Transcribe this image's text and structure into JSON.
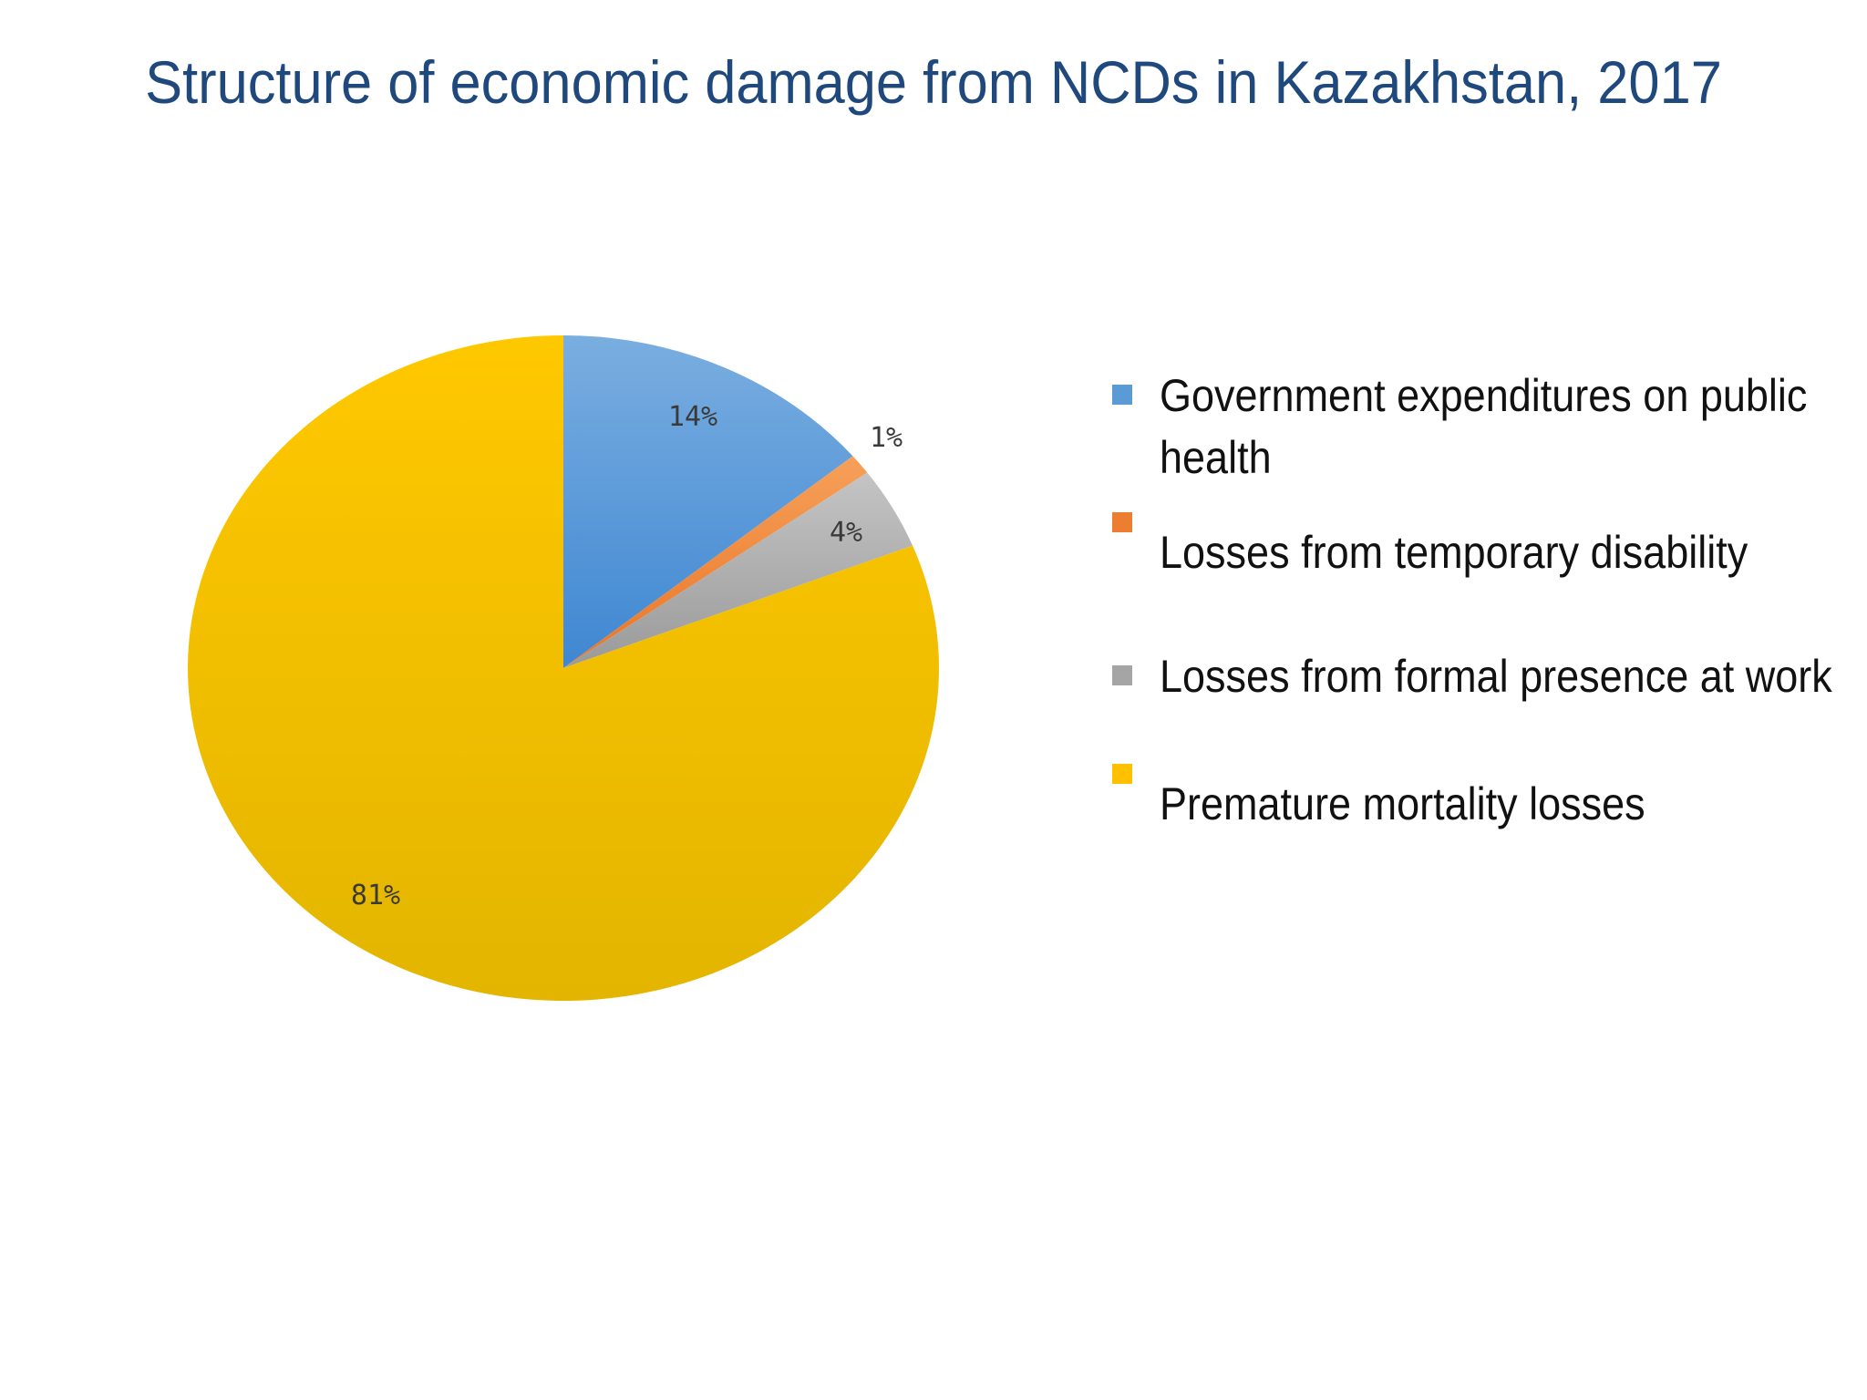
{
  "chart_data": {
    "type": "pie",
    "title": "Structure of economic damage from NCDs in Kazakhstan, 2017",
    "legend_position": "right",
    "slices": [
      {
        "name": "Government expenditures on public health",
        "value": 14,
        "label": "14%",
        "color": "#5b9bd5"
      },
      {
        "name": "Losses from temporary disability",
        "value": 1,
        "label": "1%",
        "color": "#ed7d31"
      },
      {
        "name": "Losses from formal presence at work",
        "value": 4,
        "label": "4%",
        "color": "#a5a5a5"
      },
      {
        "name": "Premature mortality losses",
        "value": 81,
        "label": "81%",
        "color": "#ffc000"
      }
    ]
  }
}
